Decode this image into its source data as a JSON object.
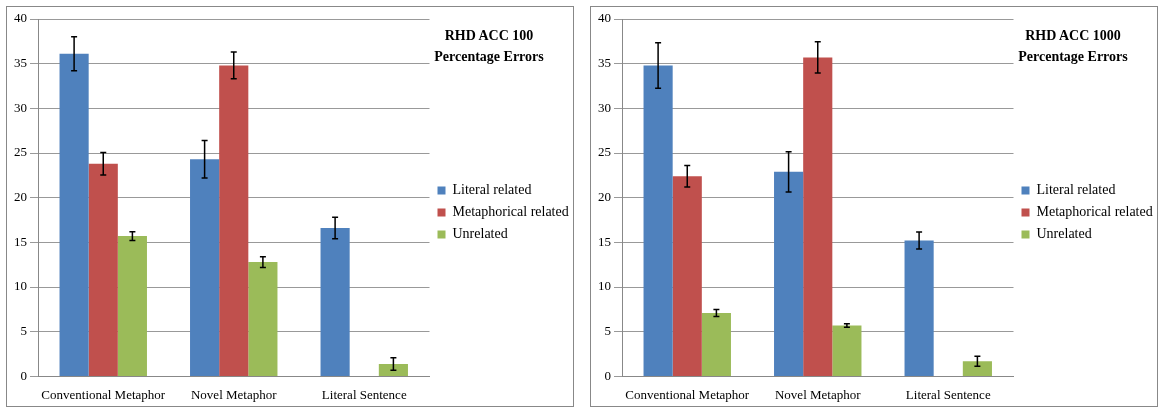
{
  "chart_data": [
    {
      "type": "bar",
      "title": "RHD ACC 100\nPercentage Errors",
      "categories": [
        "Conventional Metaphor",
        "Novel Metaphor",
        "Literal Sentence"
      ],
      "series": [
        {
          "name": "Literal related",
          "color": "#4f81bd",
          "values": [
            36.1,
            24.3,
            16.6
          ],
          "errors": [
            1.9,
            2.1,
            1.2
          ]
        },
        {
          "name": "Metaphorical related",
          "color": "#c0504d",
          "values": [
            23.8,
            34.8,
            null
          ],
          "errors": [
            1.25,
            1.5,
            null
          ]
        },
        {
          "name": "Unrelated",
          "color": "#9bbb59",
          "values": [
            15.7,
            12.8,
            1.4
          ],
          "errors": [
            0.5,
            0.6,
            0.7
          ]
        }
      ],
      "ylim": [
        0,
        40
      ],
      "yticks": [
        0,
        5,
        10,
        15,
        20,
        25,
        30,
        35,
        40
      ],
      "grid": "y",
      "legend": "right"
    },
    {
      "type": "bar",
      "title": "RHD ACC 1000\nPercentage Errors",
      "categories": [
        "Conventional Metaphor",
        "Novel Metaphor",
        "Literal Sentence"
      ],
      "series": [
        {
          "name": "Literal related",
          "color": "#4f81bd",
          "values": [
            34.8,
            22.9,
            15.2
          ],
          "errors": [
            2.55,
            2.25,
            0.95
          ]
        },
        {
          "name": "Metaphorical related",
          "color": "#c0504d",
          "values": [
            22.4,
            35.7,
            null
          ],
          "errors": [
            1.2,
            1.75,
            null
          ]
        },
        {
          "name": "Unrelated",
          "color": "#9bbb59",
          "values": [
            7.1,
            5.7,
            1.7
          ],
          "errors": [
            0.4,
            0.2,
            0.55
          ]
        }
      ],
      "ylim": [
        0,
        40
      ],
      "yticks": [
        0,
        5,
        10,
        15,
        20,
        25,
        30,
        35,
        40
      ],
      "grid": "y",
      "legend": "right"
    }
  ]
}
